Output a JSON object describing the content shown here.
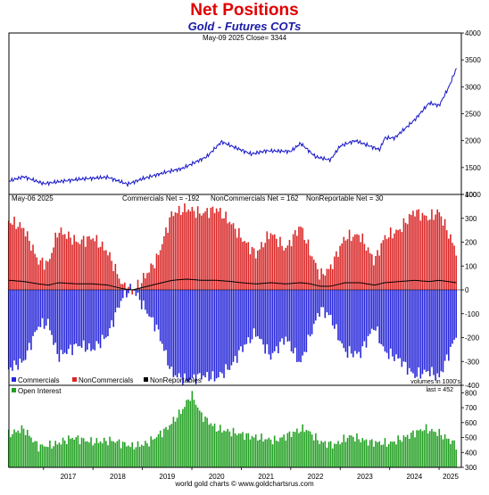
{
  "header": {
    "title": "Net Positions",
    "subtitle": "Gold - Futures COTs",
    "price_info": "May-09  2025   Close= 3344"
  },
  "footer": {
    "credit": "world gold charts © www.goldchartsrus.com"
  },
  "colors": {
    "title": "#e00000",
    "subtitle": "#1a1aa6",
    "price_line": "#1414c8",
    "commercials": "#2626d9",
    "noncommercials": "#d92626",
    "nonreportables": "#000000",
    "open_interest": "#22a022"
  },
  "chart_data": [
    {
      "type": "line",
      "panel": "price",
      "date_label": "May-09  2025",
      "close_label": "Close= 3344",
      "ylim": [
        1000,
        4000
      ],
      "yticks": [
        1000,
        1500,
        2000,
        2500,
        3000,
        3500,
        4000
      ],
      "x_anchor_years": [
        2016.3,
        2016.6,
        2017.0,
        2017.5,
        2017.8,
        2018.3,
        2018.7,
        2019.0,
        2019.5,
        2019.8,
        2020.3,
        2020.6,
        2020.8,
        2021.2,
        2021.5,
        2022.0,
        2022.2,
        2022.5,
        2022.8,
        2023.0,
        2023.3,
        2023.8,
        2023.9,
        2024.1,
        2024.5,
        2024.8,
        2025.0,
        2025.2,
        2025.35
      ],
      "y_anchor_values": [
        1250,
        1330,
        1200,
        1260,
        1290,
        1320,
        1190,
        1290,
        1420,
        1480,
        1700,
        1980,
        1900,
        1750,
        1810,
        1800,
        1950,
        1700,
        1640,
        1900,
        2000,
        1830,
        2050,
        2050,
        2380,
        2700,
        2650,
        3000,
        3344
      ]
    },
    {
      "type": "bar",
      "panel": "net_positions",
      "date_label": "May-06  2025",
      "ylim": [
        -400,
        400
      ],
      "yticks": [
        -400,
        -300,
        -200,
        -100,
        0,
        100,
        200,
        300,
        400
      ],
      "labels": {
        "commercials": "Commercials Net = -192",
        "noncommercials": "NonCommercials Net = 162",
        "nonreportables": "NonReportable Net = 30"
      },
      "legend": [
        "Commercials",
        "NonCommercials",
        "NonReportables"
      ],
      "units_note": "volumes in 1000's",
      "x_anchor_years": [
        2016.3,
        2016.6,
        2016.9,
        2017.1,
        2017.3,
        2017.7,
        2018.0,
        2018.3,
        2018.6,
        2018.8,
        2019.0,
        2019.3,
        2019.6,
        2019.9,
        2020.2,
        2020.5,
        2020.8,
        2021.0,
        2021.3,
        2021.6,
        2021.9,
        2022.2,
        2022.4,
        2022.6,
        2022.8,
        2023.1,
        2023.4,
        2023.7,
        2023.9,
        2024.2,
        2024.5,
        2024.8,
        2025.0,
        2025.35
      ],
      "noncommercials_anchor_values": [
        290,
        260,
        120,
        110,
        250,
        200,
        220,
        160,
        20,
        -10,
        40,
        130,
        320,
        340,
        320,
        340,
        280,
        220,
        150,
        240,
        170,
        270,
        160,
        60,
        90,
        220,
        230,
        120,
        220,
        250,
        330,
        300,
        330,
        162
      ],
      "commercials_anchor_values": [
        -330,
        -300,
        -150,
        -140,
        -280,
        -230,
        -250,
        -190,
        -30,
        10,
        -60,
        -160,
        -350,
        -380,
        -360,
        -370,
        -320,
        -250,
        -180,
        -280,
        -200,
        -310,
        -190,
        -80,
        -110,
        -260,
        -270,
        -150,
        -260,
        -290,
        -360,
        -340,
        -370,
        -192
      ],
      "nonreportables_anchor_values": [
        40,
        35,
        25,
        20,
        30,
        25,
        25,
        20,
        5,
        0,
        10,
        25,
        40,
        45,
        40,
        40,
        35,
        30,
        25,
        30,
        25,
        30,
        25,
        15,
        15,
        30,
        30,
        20,
        30,
        35,
        40,
        35,
        40,
        30
      ]
    },
    {
      "type": "bar",
      "panel": "open_interest",
      "legend": [
        "Open Interest"
      ],
      "last_label": "last = 452",
      "ylim": [
        300,
        850
      ],
      "yticks": [
        300,
        400,
        500,
        600,
        700,
        800
      ],
      "x_anchor_years": [
        2016.3,
        2016.6,
        2016.9,
        2017.2,
        2017.6,
        2018.0,
        2018.4,
        2018.8,
        2019.1,
        2019.5,
        2019.8,
        2020.0,
        2020.2,
        2020.5,
        2020.9,
        2021.3,
        2021.7,
        2022.1,
        2022.3,
        2022.6,
        2022.9,
        2023.2,
        2023.6,
        2024.0,
        2024.3,
        2024.7,
        2025.0,
        2025.35
      ],
      "values_anchor": [
        520,
        560,
        440,
        450,
        500,
        470,
        480,
        440,
        460,
        560,
        680,
        790,
        650,
        560,
        530,
        500,
        480,
        540,
        560,
        470,
        450,
        510,
        470,
        460,
        500,
        560,
        530,
        452
      ]
    }
  ],
  "x_axis": {
    "years": [
      "2017",
      "2018",
      "2019",
      "2020",
      "2021",
      "2022",
      "2023",
      "2024",
      "2025"
    ],
    "range": [
      2016.3,
      2025.45
    ]
  }
}
